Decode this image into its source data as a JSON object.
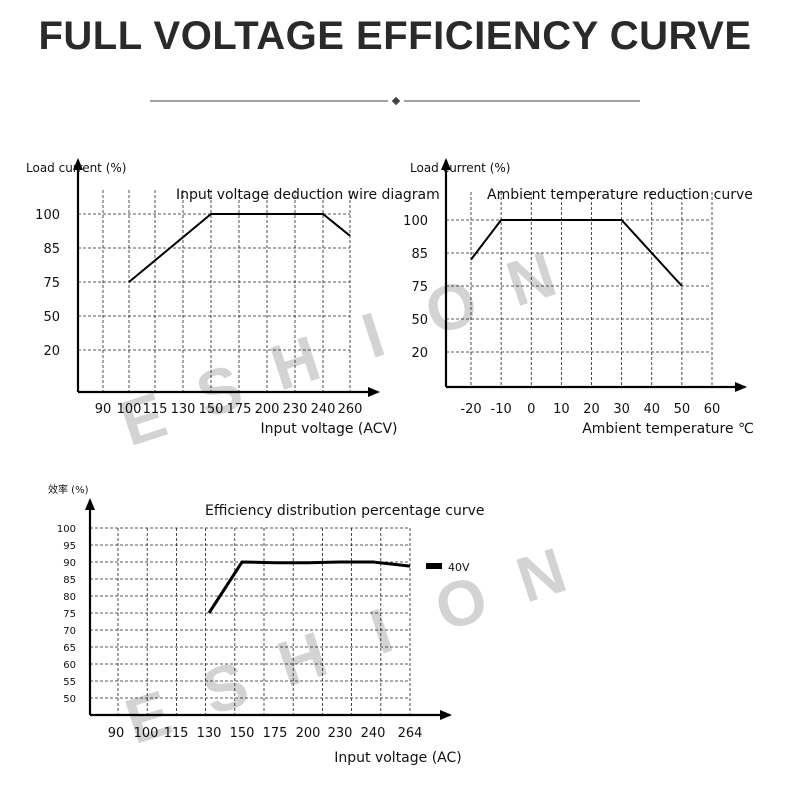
{
  "page": {
    "title": "FULL VOLTAGE EFFICIENCY CURVE"
  },
  "watermark": {
    "text": "ESHION"
  },
  "chart_data": [
    {
      "type": "line",
      "title": "Input voltage deduction wire diagram",
      "xlabel": "Input voltage (ACV)",
      "ylabel": "Load current (%)",
      "categories": [
        "90",
        "100",
        "115",
        "130",
        "150",
        "175",
        "200",
        "230",
        "240",
        "260"
      ],
      "yticks": [
        "100",
        "85",
        "75",
        "50",
        "20"
      ],
      "series": [
        {
          "x": [
            "100",
            "150",
            "240",
            "260"
          ],
          "values": [
            75,
            100,
            100,
            92
          ]
        }
      ],
      "grid": true
    },
    {
      "type": "line",
      "title": "Ambient temperature reduction curve",
      "xlabel": "Ambient temperature ℃",
      "ylabel": "Load current (%)",
      "categories": [
        "-20",
        "-10",
        "0",
        "10",
        "20",
        "30",
        "40",
        "50",
        "60"
      ],
      "yticks": [
        "100",
        "85",
        "75",
        "50",
        "20"
      ],
      "series": [
        {
          "x": [
            -20,
            -10,
            30,
            50
          ],
          "values": [
            85,
            100,
            100,
            75
          ]
        }
      ],
      "grid": true
    },
    {
      "type": "line",
      "title": "Efficiency distribution percentage curve",
      "xlabel": "Input voltage (AC)",
      "ylabel": "效率 (%)",
      "categories": [
        "90",
        "100",
        "115",
        "130",
        "150",
        "175",
        "200",
        "230",
        "240",
        "264"
      ],
      "yticks": [
        "100",
        "95",
        "90",
        "85",
        "80",
        "75",
        "70",
        "65",
        "60",
        "55",
        "50"
      ],
      "series": [
        {
          "name": "40V",
          "x": [
            "130",
            "150",
            "175",
            "200",
            "230",
            "240",
            "264"
          ],
          "values": [
            75,
            90,
            89.8,
            89.8,
            90,
            90,
            88.8
          ]
        }
      ],
      "grid": true
    }
  ]
}
